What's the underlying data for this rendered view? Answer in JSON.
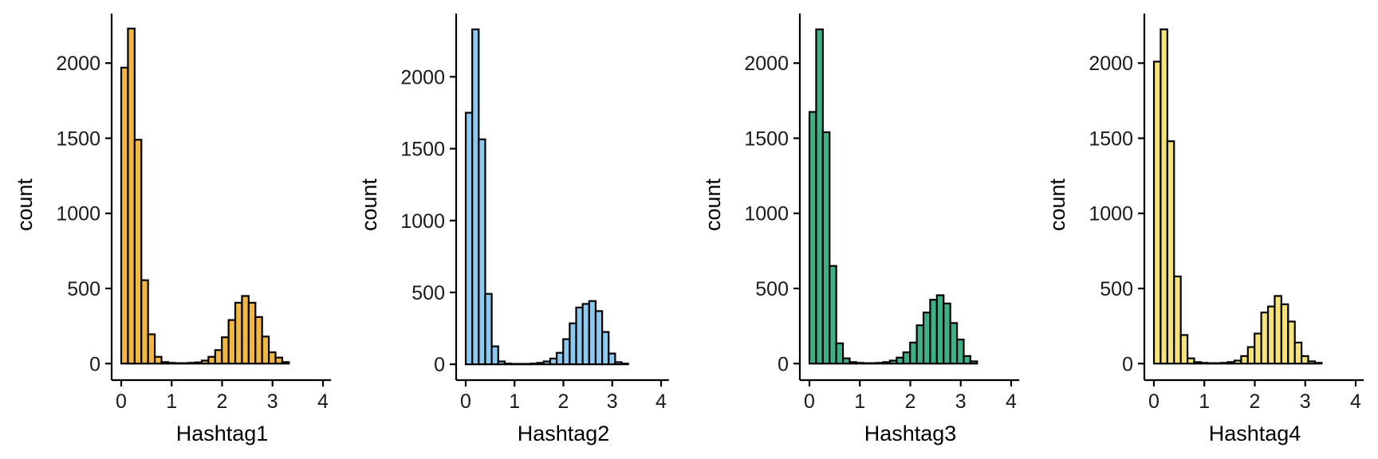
{
  "chart_data": [
    {
      "type": "bar",
      "xlabel": "Hashtag1",
      "ylabel": "count",
      "fill": "#F2B742",
      "x_range": [
        -0.16,
        4.16
      ],
      "xticks": [
        0,
        1,
        2,
        3,
        4
      ],
      "yticks": [
        0,
        500,
        1000,
        1500,
        2000
      ],
      "ylim": [
        -110,
        2330
      ],
      "bin_width": 0.133,
      "bin_start": 0.067,
      "values": [
        1970,
        2230,
        1490,
        555,
        195,
        45,
        10,
        5,
        3,
        3,
        5,
        8,
        20,
        45,
        90,
        175,
        290,
        405,
        450,
        405,
        310,
        180,
        75,
        40,
        10
      ]
    },
    {
      "type": "bar",
      "xlabel": "Hashtag2",
      "ylabel": "count",
      "fill": "#8DC8EE",
      "x_range": [
        -0.16,
        4.16
      ],
      "xticks": [
        0,
        1,
        2,
        3,
        4
      ],
      "yticks": [
        0,
        500,
        1000,
        1500,
        2000
      ],
      "ylim": [
        -110,
        2440
      ],
      "bin_width": 0.133,
      "bin_start": 0.067,
      "values": [
        1750,
        2330,
        1565,
        490,
        125,
        20,
        5,
        3,
        3,
        3,
        5,
        10,
        20,
        40,
        80,
        175,
        285,
        395,
        420,
        440,
        370,
        225,
        75,
        15,
        5
      ]
    },
    {
      "type": "bar",
      "xlabel": "Hashtag3",
      "ylabel": "count",
      "fill": "#3FAF84",
      "x_range": [
        -0.16,
        4.16
      ],
      "xticks": [
        0,
        1,
        2,
        3,
        4
      ],
      "yticks": [
        0,
        500,
        1000,
        1500,
        2000
      ],
      "ylim": [
        -110,
        2330
      ],
      "bin_width": 0.133,
      "bin_start": 0.067,
      "values": [
        1675,
        2225,
        1540,
        650,
        135,
        35,
        10,
        5,
        3,
        3,
        5,
        10,
        20,
        40,
        75,
        140,
        255,
        340,
        425,
        455,
        400,
        270,
        160,
        50,
        15
      ]
    },
    {
      "type": "bar",
      "xlabel": "Hashtag4",
      "ylabel": "count",
      "fill": "#F5E278",
      "x_range": [
        -0.16,
        4.16
      ],
      "xticks": [
        0,
        1,
        2,
        3,
        4
      ],
      "yticks": [
        0,
        500,
        1000,
        1500,
        2000
      ],
      "ylim": [
        -110,
        2330
      ],
      "bin_width": 0.133,
      "bin_start": 0.067,
      "values": [
        2010,
        2225,
        1480,
        580,
        190,
        35,
        10,
        5,
        3,
        3,
        5,
        10,
        20,
        50,
        110,
        200,
        340,
        380,
        450,
        395,
        280,
        140,
        50,
        15,
        5
      ]
    }
  ]
}
